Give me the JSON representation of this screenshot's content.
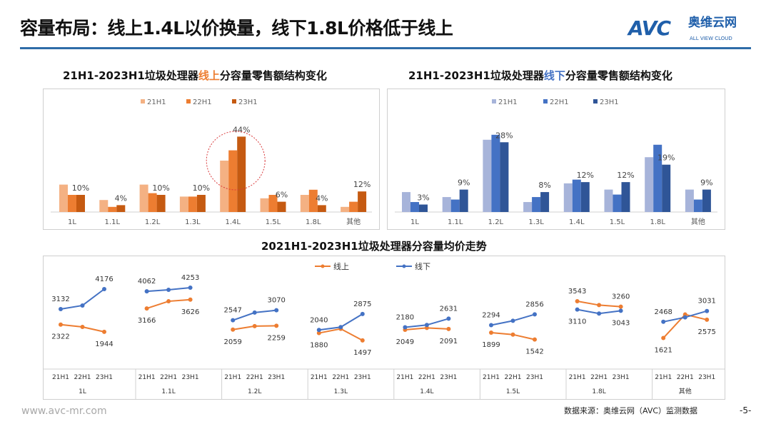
{
  "header": {
    "title": "容量布局：线上1.4L以价换量，线下1.8L价格低于线上",
    "logo_text": "AVC",
    "logo_cn": "奥维云网",
    "logo_en": "ALL VIEW CLOUD"
  },
  "colors": {
    "rule": "#2E6CA8",
    "online_21": "#F4B183",
    "online_22": "#ED7D31",
    "online_23": "#C55A11",
    "offline_21": "#A7B4DA",
    "offline_22": "#4472C4",
    "offline_23": "#2F5597",
    "line_online": "#ED7D31",
    "line_offline": "#4472C4",
    "highlight_circle": "#D9383A"
  },
  "chart_data": [
    {
      "type": "bar",
      "title_pre": "21H1-2023H1垃圾处理器",
      "title_hl": "线上",
      "title_post": "分容量零售额结构变化",
      "title": "21H1-2023H1垃圾处理器线上分容量零售额结构变化",
      "categories": [
        "1L",
        "1.1L",
        "1.2L",
        "1.3L",
        "1.4L",
        "1.5L",
        "1.8L",
        "其他"
      ],
      "series": [
        {
          "name": "21H1",
          "values": [
            16,
            7,
            16,
            9,
            30,
            8,
            10,
            3
          ]
        },
        {
          "name": "22H1",
          "values": [
            10,
            3,
            11,
            9,
            36,
            10,
            13,
            6
          ]
        },
        {
          "name": "23H1",
          "values": [
            10,
            4,
            10,
            10,
            44,
            6,
            4,
            12
          ]
        }
      ],
      "data_labels": [
        "10%",
        "4%",
        "10%",
        "10%",
        "44%",
        "6%",
        "4%",
        "12%"
      ],
      "highlight": "1.4L",
      "unit": "%",
      "ylim": [
        0,
        50
      ],
      "legend": "top"
    },
    {
      "type": "bar",
      "title_pre": "21H1-2023H1垃圾处理器",
      "title_hl": "线下",
      "title_post": "分容量零售额结构变化",
      "title": "21H1-2023H1垃圾处理器线下分容量零售额结构变化",
      "categories": [
        "1L",
        "1.1L",
        "1.2L",
        "1.3L",
        "1.4L",
        "1.5L",
        "1.8L",
        "其他"
      ],
      "series": [
        {
          "name": "21H1",
          "values": [
            8,
            6,
            29,
            4,
            11.5,
            9,
            22,
            9
          ]
        },
        {
          "name": "22H1",
          "values": [
            4,
            5,
            31,
            6,
            13,
            7,
            27,
            5
          ]
        },
        {
          "name": "23H1",
          "values": [
            3,
            9,
            28,
            8,
            12,
            12,
            19,
            9
          ]
        }
      ],
      "data_labels": [
        "3%",
        "9%",
        "28%",
        "8%",
        "12%",
        "12%",
        "19%",
        "9%"
      ],
      "unit": "%",
      "ylim": [
        0,
        35
      ],
      "legend": "top"
    },
    {
      "type": "line",
      "title": "2021H1-2023H1垃圾处理器分容量均价走势",
      "groups": [
        "1L",
        "1.1L",
        "1.2L",
        "1.3L",
        "1.4L",
        "1.5L",
        "1.8L",
        "其他"
      ],
      "x": [
        "21H1",
        "22H1",
        "23H1"
      ],
      "series": [
        {
          "name": "线上",
          "values": [
            [
              2322,
              2200,
              1944
            ],
            [
              3166,
              3540,
              3626
            ],
            [
              2059,
              2240,
              2259
            ],
            [
              1880,
              2100,
              1497
            ],
            [
              2049,
              2150,
              2091
            ],
            [
              1899,
              1800,
              1542
            ],
            [
              3543,
              3340,
              3260
            ],
            [
              1621,
              2850,
              2575
            ]
          ]
        },
        {
          "name": "线下",
          "values": [
            [
              3132,
              3320,
              4176
            ],
            [
              4062,
              4140,
              4253
            ],
            [
              2547,
              2950,
              3070
            ],
            [
              2040,
              2190,
              2875
            ],
            [
              2180,
              2300,
              2631
            ],
            [
              2294,
              2520,
              2856
            ],
            [
              3110,
              2900,
              3043
            ],
            [
              2468,
              2700,
              3031
            ]
          ]
        }
      ],
      "labeled_points": [
        "21H1",
        "23H1"
      ],
      "legend": "top-center"
    }
  ],
  "footer": {
    "url": "www.avc-mr.com",
    "source": "数据来源：奥维云网（AVC）监测数据",
    "page": "-5-"
  }
}
